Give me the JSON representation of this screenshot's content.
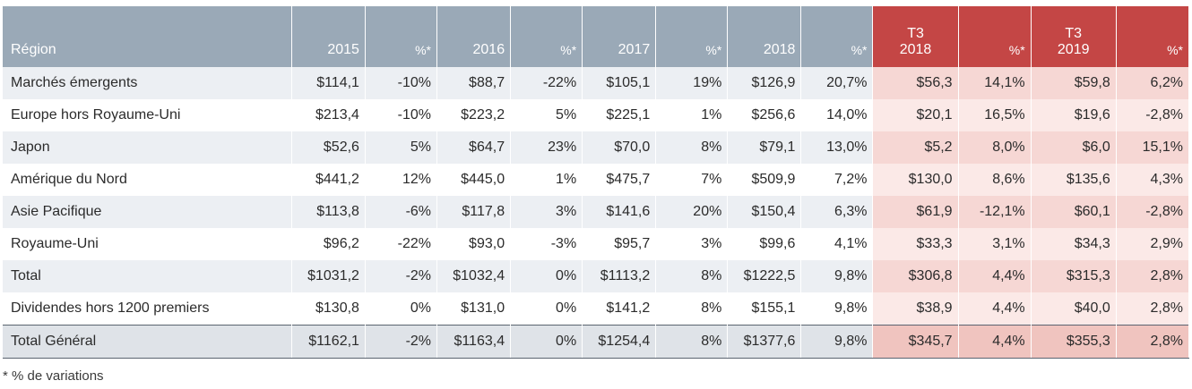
{
  "table": {
    "headers": {
      "region": "Région",
      "y2015": "2015",
      "y2016": "2016",
      "y2017": "2017",
      "y2018": "2018",
      "pct": "%*",
      "t3_2018_line1": "T3",
      "t3_2018_line2": "2018",
      "t3_2019_line1": "T3",
      "t3_2019_line2": "2019"
    },
    "rows": [
      {
        "region": "Marchés émergents",
        "v2015": "$114,1",
        "p2015": "-10%",
        "v2016": "$88,7",
        "p2016": "-22%",
        "v2017": "$105,1",
        "p2017": "19%",
        "v2018": "$126,9",
        "p2018": "20,7%",
        "vt2018": "$56,3",
        "pt2018": "14,1%",
        "vt2019": "$59,8",
        "pt2019": "6,2%"
      },
      {
        "region": "Europe hors Royaume-Uni",
        "v2015": "$213,4",
        "p2015": "-10%",
        "v2016": "$223,2",
        "p2016": "5%",
        "v2017": "$225,1",
        "p2017": "1%",
        "v2018": "$256,6",
        "p2018": "14,0%",
        "vt2018": "$20,1",
        "pt2018": "16,5%",
        "vt2019": "$19,6",
        "pt2019": "-2,8%"
      },
      {
        "region": "Japon",
        "v2015": "$52,6",
        "p2015": "5%",
        "v2016": "$64,7",
        "p2016": "23%",
        "v2017": "$70,0",
        "p2017": "8%",
        "v2018": "$79,1",
        "p2018": "13,0%",
        "vt2018": "$5,2",
        "pt2018": "8,0%",
        "vt2019": "$6,0",
        "pt2019": "15,1%"
      },
      {
        "region": "Amérique du Nord",
        "v2015": "$441,2",
        "p2015": "12%",
        "v2016": "$445,0",
        "p2016": "1%",
        "v2017": "$475,7",
        "p2017": "7%",
        "v2018": "$509,9",
        "p2018": "7,2%",
        "vt2018": "$130,0",
        "pt2018": "8,6%",
        "vt2019": "$135,6",
        "pt2019": "4,3%"
      },
      {
        "region": "Asie Pacifique",
        "v2015": "$113,8",
        "p2015": "-6%",
        "v2016": "$117,8",
        "p2016": "3%",
        "v2017": "$141,6",
        "p2017": "20%",
        "v2018": "$150,4",
        "p2018": "6,3%",
        "vt2018": "$61,9",
        "pt2018": "-12,1%",
        "vt2019": "$60,1",
        "pt2019": "-2,8%"
      },
      {
        "region": "Royaume-Uni",
        "v2015": "$96,2",
        "p2015": "-22%",
        "v2016": "$93,0",
        "p2016": "-3%",
        "v2017": "$95,7",
        "p2017": "3%",
        "v2018": "$99,6",
        "p2018": "4,1%",
        "vt2018": "$33,3",
        "pt2018": "3,1%",
        "vt2019": "$34,3",
        "pt2019": "2,9%"
      },
      {
        "region": "Total",
        "v2015": "$1031,2",
        "p2015": "-2%",
        "v2016": "$1032,4",
        "p2016": "0%",
        "v2017": "$1113,2",
        "p2017": "8%",
        "v2018": "$1222,5",
        "p2018": "9,8%",
        "vt2018": "$306,8",
        "pt2018": "4,4%",
        "vt2019": "$315,3",
        "pt2019": "2,8%"
      },
      {
        "region": "Dividendes hors 1200 premiers",
        "v2015": "$130,8",
        "p2015": "0%",
        "v2016": "$131,0",
        "p2016": "0%",
        "v2017": "$141,2",
        "p2017": "8%",
        "v2018": "$155,1",
        "p2018": "9,8%",
        "vt2018": "$38,9",
        "pt2018": "4,4%",
        "vt2019": "$40,0",
        "pt2019": "2,8%"
      },
      {
        "region": "Total Général",
        "v2015": "$1162,1",
        "p2015": "-2%",
        "v2016": "$1163,4",
        "p2016": "0%",
        "v2017": "$1254,4",
        "p2017": "8%",
        "v2018": "$1377,6",
        "p2018": "9,8%",
        "vt2018": "$345,7",
        "pt2018": "4,4%",
        "vt2019": "$355,3",
        "pt2019": "2,8%"
      }
    ]
  },
  "footnote": "* % de variations",
  "colors": {
    "header_bg": "#9aa9b7",
    "header_accent": "#c44645",
    "row_alt": "#eceff3",
    "accent_cell_light": "#fbe9e7",
    "accent_cell_dark": "#f6d7d4"
  }
}
